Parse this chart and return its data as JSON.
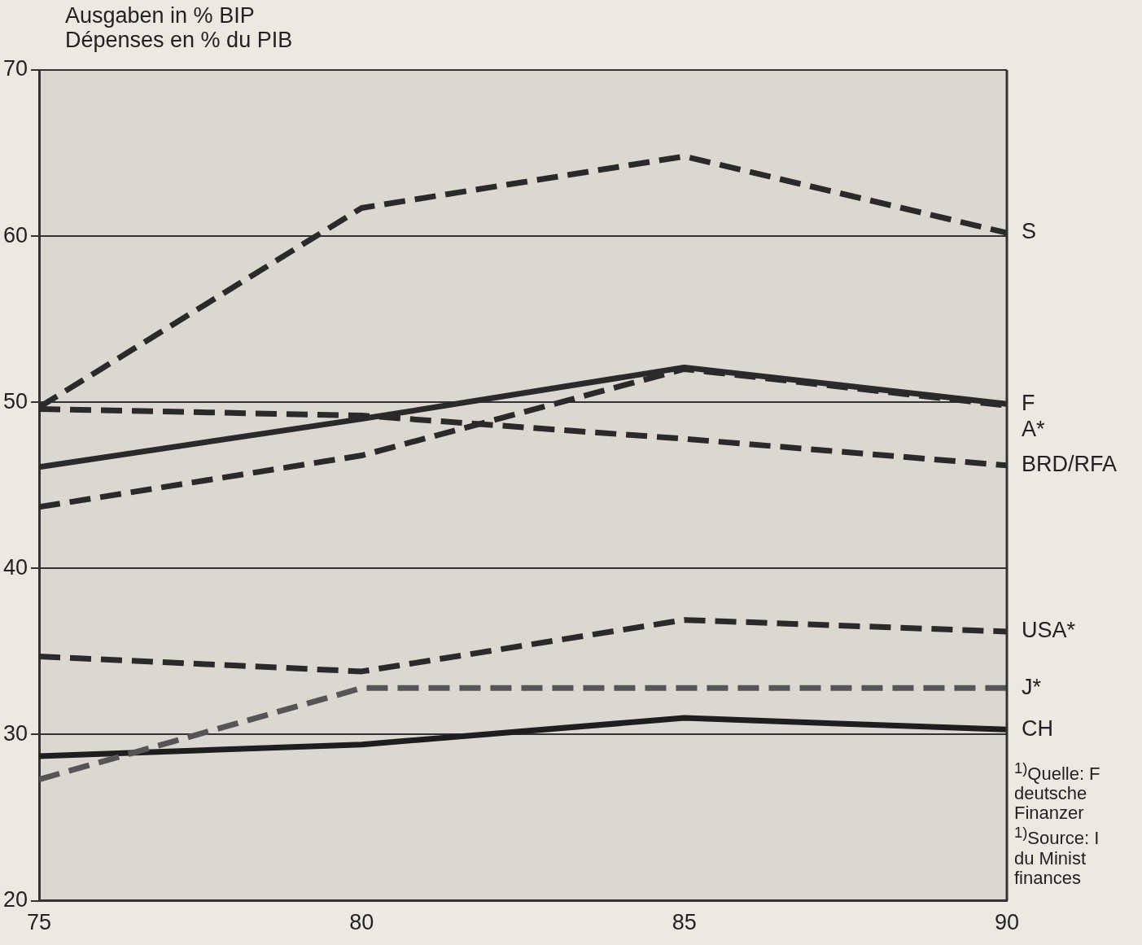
{
  "chart_data": {
    "type": "line",
    "ylabel": "Ausgaben in % BIP\nDépenses en % du PIB",
    "x": [
      75,
      80,
      85,
      90
    ],
    "xlim": [
      75,
      90
    ],
    "xticks": [
      75,
      80,
      85,
      90
    ],
    "ylim": [
      20,
      70
    ],
    "yticks": [
      20,
      30,
      40,
      50,
      60,
      70
    ],
    "grid": "y",
    "legend": false,
    "marker": "none",
    "series": [
      {
        "name": "S",
        "color": "#2a2a2a",
        "line_style": "dashed",
        "values": [
          49.7,
          61.7,
          64.8,
          60.2
        ]
      },
      {
        "name": "F",
        "color": "#2a2a2a",
        "line_style": "solid",
        "values": [
          46.1,
          49.0,
          52.1,
          49.9
        ]
      },
      {
        "name": "A*",
        "color": "#2a2a2a",
        "line_style": "dashed",
        "values": [
          43.7,
          46.8,
          52.0,
          49.8
        ]
      },
      {
        "name": "BRD/RFA",
        "color": "#2a2a2a",
        "line_style": "dashed",
        "values": [
          49.6,
          49.2,
          47.8,
          46.2
        ]
      },
      {
        "name": "USA*",
        "color": "#2a2a2a",
        "line_style": "dashed",
        "values": [
          34.7,
          33.8,
          36.9,
          36.2
        ]
      },
      {
        "name": "J*",
        "color": "#555555",
        "line_style": "dashed",
        "values": [
          27.3,
          32.8,
          32.8,
          32.8
        ]
      },
      {
        "name": "CH",
        "color": "#1e1e1e",
        "line_style": "solid",
        "values": [
          28.7,
          29.4,
          31.0,
          30.3
        ]
      }
    ],
    "annotations": [
      "$^{1)}$Quelle: F\ndeutsche\nFinanzer",
      "$^{1)}$Source: I\ndu Minist\nfinances"
    ]
  }
}
